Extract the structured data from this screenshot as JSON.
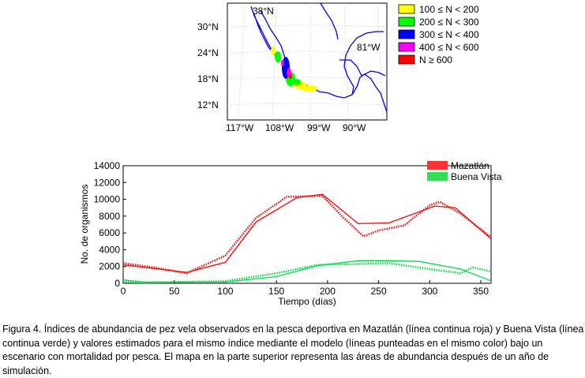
{
  "map": {
    "lat_labels": [
      "30°N",
      "24°N",
      "18°N",
      "12°N"
    ],
    "lon_labels": [
      "117°W",
      "108°W",
      "99°W",
      "90°W"
    ],
    "corner_lat_label": "38°N",
    "corner_lon_label": "81°W",
    "legend": [
      {
        "label": "100 ≤ N < 200",
        "color": "#ffff00"
      },
      {
        "label": "200 ≤ N < 300",
        "color": "#00ff00"
      },
      {
        "label": "300 ≤ N < 400",
        "color": "#0000ff"
      },
      {
        "label": "400 ≤ N < 600",
        "color": "#ff00ff"
      },
      {
        "label": "N ≥ 600",
        "color": "#ff0000"
      }
    ],
    "coast_color": "#0000ff"
  },
  "chart_data": {
    "type": "line",
    "xlabel": "Tiempo (días)",
    "ylabel": "No. de organismos",
    "xlim": [
      0,
      360
    ],
    "ylim": [
      0,
      14000
    ],
    "xticks": [
      0,
      50,
      100,
      150,
      200,
      250,
      300,
      350
    ],
    "yticks": [
      0,
      2000,
      4000,
      6000,
      8000,
      10000,
      12000,
      14000
    ],
    "legend_position": "top-right",
    "series": [
      {
        "name": "Mazatlán",
        "color": "#ff0000",
        "style": "solid",
        "x": [
          0,
          62,
          100,
          130,
          170,
          195,
          230,
          260,
          305,
          325,
          360
        ],
        "y": [
          2200,
          1300,
          2500,
          7300,
          10200,
          10600,
          7100,
          7200,
          9200,
          9000,
          5300
        ]
      },
      {
        "name": "",
        "color": "#ff0000",
        "style": "dotted",
        "x": [
          0,
          30,
          62,
          100,
          130,
          160,
          195,
          215,
          235,
          250,
          275,
          300,
          310,
          330,
          360
        ],
        "y": [
          2400,
          1900,
          1200,
          3300,
          7800,
          10300,
          10400,
          7900,
          5600,
          6300,
          6900,
          9300,
          9700,
          8300,
          5500
        ]
      },
      {
        "name": "Buena Vista",
        "color": "#00dd44",
        "style": "solid",
        "x": [
          0,
          20,
          100,
          150,
          190,
          230,
          260,
          290,
          330,
          360
        ],
        "y": [
          400,
          150,
          150,
          800,
          2100,
          2700,
          2700,
          2600,
          1700,
          300
        ]
      },
      {
        "name": "",
        "color": "#00dd44",
        "style": "dotted",
        "x": [
          0,
          20,
          100,
          150,
          190,
          230,
          260,
          300,
          330,
          342,
          360
        ],
        "y": [
          200,
          80,
          250,
          1200,
          2200,
          2300,
          2400,
          1700,
          1200,
          1900,
          1400
        ]
      }
    ]
  },
  "caption": "Figura 4. Índices de abundancia de pez vela observados en la pesca deportiva en Mazatlán (línea continua roja) y Buena Vista (línea continua verde) y valores estimados para el mismo índice mediante el modelo (líneas punteadas en el mismo color) bajo un escenario con mortalidad por pesca. El mapa en la parte superior representa las áreas de abundancia después de un año de simulación."
}
